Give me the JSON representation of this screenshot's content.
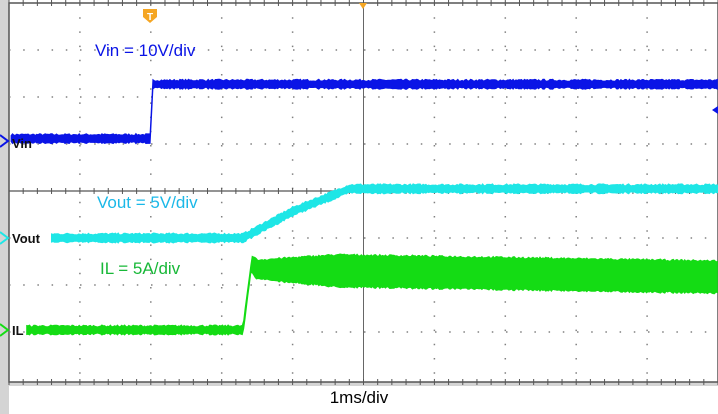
{
  "chart_data": {
    "type": "line",
    "xlabel": "1ms/div",
    "x_unit": "ms",
    "xlim": [
      -2,
      8
    ],
    "grid": true,
    "trigger_marker": "T",
    "colors": {
      "vin": "#0a14e6",
      "vout": "#1ee6e6",
      "il": "#14dc14",
      "trigger": "#f5a623",
      "grid": "#808080"
    },
    "series": [
      {
        "name": "Vin",
        "scale_label": "Vin = 10V/div",
        "unit": "V",
        "volts_per_div": 10,
        "x": [
          -1.97,
          0.0,
          0.02,
          8.0
        ],
        "y": [
          0.5,
          0.5,
          12,
          12
        ],
        "noise": 0.6
      },
      {
        "name": "Vout",
        "scale_label": "Vout = 5V/div",
        "unit": "V",
        "volts_per_div": 5,
        "x": [
          -1.4,
          1.3,
          2.0,
          2.8,
          8.0
        ],
        "y": [
          0,
          0,
          2.8,
          5.2,
          5.2
        ],
        "noise": 0.35
      },
      {
        "name": "IL",
        "scale_label": "IL = 5A/div",
        "unit": "A",
        "volts_per_div": 5,
        "x": [
          -1.75,
          1.3,
          1.42,
          1.5,
          8.0
        ],
        "y": [
          0,
          0,
          7,
          6.4,
          5.6
        ],
        "ripple_start": 1.0,
        "ripple_end": 1.6,
        "noise": 0.3
      }
    ]
  }
}
